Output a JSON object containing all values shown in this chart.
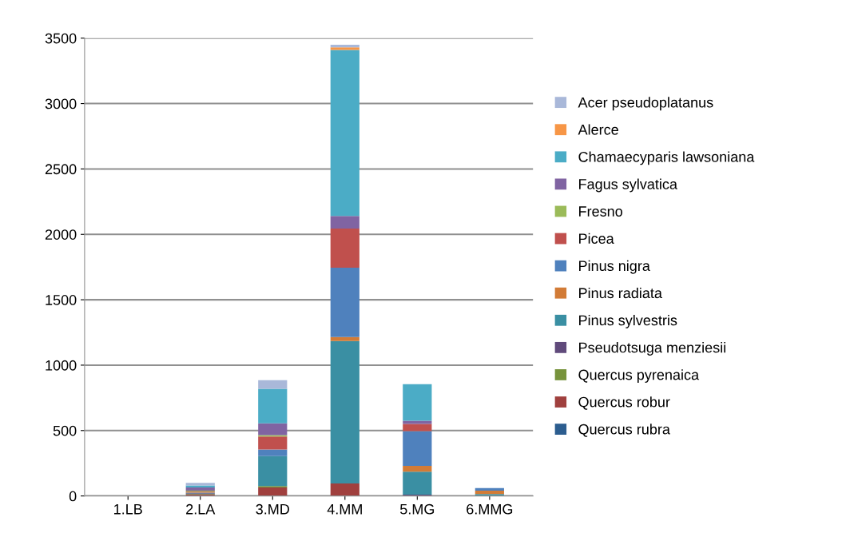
{
  "chart_data": {
    "type": "bar",
    "stacked": true,
    "categories": [
      "1.LB",
      "2.LA",
      "3.MD",
      "4.MM",
      "5.MG",
      "6.MMG"
    ],
    "series": [
      {
        "name": "Quercus rubra",
        "color": "#2c5d8f",
        "values": [
          0,
          0,
          0,
          0,
          0,
          0
        ]
      },
      {
        "name": "Quercus robur",
        "color": "#a0403e",
        "values": [
          0,
          10,
          65,
          95,
          0,
          0
        ]
      },
      {
        "name": "Quercus pyrenaica",
        "color": "#77933c",
        "values": [
          0,
          5,
          10,
          0,
          0,
          0
        ]
      },
      {
        "name": "Pseudotsuga menziesii",
        "color": "#604a7b",
        "values": [
          0,
          5,
          0,
          0,
          10,
          0
        ]
      },
      {
        "name": "Pinus sylvestris",
        "color": "#3a8fa3",
        "values": [
          0,
          5,
          230,
          1090,
          175,
          15
        ]
      },
      {
        "name": "Pinus radiata",
        "color": "#d27b36",
        "values": [
          0,
          5,
          0,
          30,
          45,
          25
        ]
      },
      {
        "name": "Pinus nigra",
        "color": "#4f81bd",
        "values": [
          0,
          0,
          50,
          530,
          265,
          20
        ]
      },
      {
        "name": "Picea",
        "color": "#c0504d",
        "values": [
          0,
          5,
          100,
          300,
          55,
          0
        ]
      },
      {
        "name": "Fresno",
        "color": "#9bbb59",
        "values": [
          0,
          5,
          10,
          0,
          0,
          0
        ]
      },
      {
        "name": "Fagus sylvatica",
        "color": "#8064a2",
        "values": [
          0,
          25,
          90,
          95,
          25,
          0
        ]
      },
      {
        "name": "Chamaecyparis lawsoniana",
        "color": "#4bacc6",
        "values": [
          0,
          15,
          265,
          1270,
          280,
          0
        ]
      },
      {
        "name": "Alerce",
        "color": "#f79646",
        "values": [
          0,
          0,
          0,
          20,
          0,
          0
        ]
      },
      {
        "name": "Acer pseudoplatanus",
        "color": "#a9b8d9",
        "values": [
          0,
          20,
          65,
          20,
          0,
          0
        ]
      }
    ],
    "ylim": [
      0,
      3500
    ],
    "yticks": [
      0,
      500,
      1000,
      1500,
      2000,
      2500,
      3000,
      3500
    ],
    "grid": "y",
    "legend": "right"
  }
}
